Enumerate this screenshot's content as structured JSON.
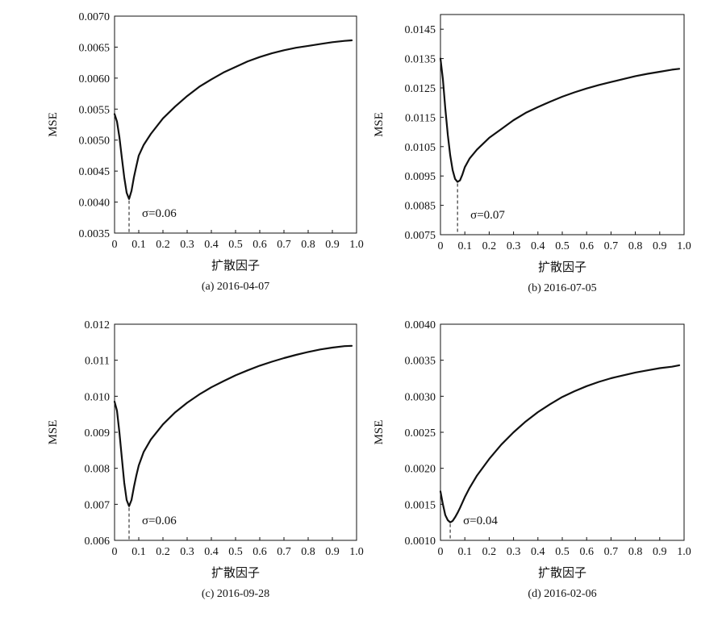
{
  "chart_data": [
    {
      "type": "line",
      "caption": "(a) 2016-04-07",
      "xlabel": "扩散因子",
      "ylabel": "MSE",
      "xlim": [
        0,
        1.0
      ],
      "ylim": [
        0.0035,
        0.007
      ],
      "xticks": [
        0,
        0.1,
        0.2,
        0.3,
        0.4,
        0.5,
        0.6,
        0.7,
        0.8,
        0.9,
        1.0
      ],
      "xtick_labels": [
        "0",
        "0.1",
        "0.2",
        "0.3",
        "0.4",
        "0.5",
        "0.6",
        "0.7",
        "0.8",
        "0.9",
        "1.0"
      ],
      "yticks": [
        0.0035,
        0.004,
        0.0045,
        0.005,
        0.0055,
        0.006,
        0.0065,
        0.007
      ],
      "ytick_labels": [
        "0.0035",
        "0.0040",
        "0.0045",
        "0.0050",
        "0.0055",
        "0.0060",
        "0.0065",
        "0.0070"
      ],
      "min_x": 0.06,
      "annotation": "σ=0.06",
      "series": [
        {
          "x": [
            0,
            0.01,
            0.02,
            0.03,
            0.04,
            0.05,
            0.06,
            0.07,
            0.08,
            0.09,
            0.1,
            0.12,
            0.15,
            0.2,
            0.25,
            0.3,
            0.35,
            0.4,
            0.45,
            0.5,
            0.55,
            0.6,
            0.65,
            0.7,
            0.75,
            0.8,
            0.85,
            0.9,
            0.95,
            0.98
          ],
          "y": [
            0.00542,
            0.0053,
            0.00505,
            0.00472,
            0.0044,
            0.00415,
            0.00405,
            0.00418,
            0.0044,
            0.00458,
            0.00475,
            0.00492,
            0.0051,
            0.00535,
            0.00554,
            0.00571,
            0.00586,
            0.00598,
            0.00609,
            0.00618,
            0.00627,
            0.00634,
            0.0064,
            0.00645,
            0.00649,
            0.00652,
            0.00655,
            0.00658,
            0.0066,
            0.00661
          ]
        }
      ]
    },
    {
      "type": "line",
      "caption": "(b) 2016-07-05",
      "xlabel": "扩散因子",
      "ylabel": "MSE",
      "xlim": [
        0,
        1.0
      ],
      "ylim": [
        0.0075,
        0.015
      ],
      "xticks": [
        0,
        0.1,
        0.2,
        0.3,
        0.4,
        0.5,
        0.6,
        0.7,
        0.8,
        0.9,
        1.0
      ],
      "xtick_labels": [
        "0",
        "0.1",
        "0.2",
        "0.3",
        "0.4",
        "0.5",
        "0.6",
        "0.7",
        "0.8",
        "0.9",
        "1.0"
      ],
      "yticks": [
        0.0075,
        0.0085,
        0.0095,
        0.0105,
        0.0115,
        0.0125,
        0.0135,
        0.0145
      ],
      "ytick_labels": [
        "0.0075",
        "0.0085",
        "0.0095",
        "0.0105",
        "0.0115",
        "0.0125",
        "0.0135",
        "0.0145"
      ],
      "min_x": 0.07,
      "annotation": "σ=0.07",
      "series": [
        {
          "x": [
            0,
            0.01,
            0.02,
            0.03,
            0.04,
            0.05,
            0.06,
            0.07,
            0.08,
            0.09,
            0.1,
            0.12,
            0.15,
            0.2,
            0.25,
            0.3,
            0.35,
            0.4,
            0.45,
            0.5,
            0.55,
            0.6,
            0.65,
            0.7,
            0.75,
            0.8,
            0.85,
            0.9,
            0.95,
            0.98
          ],
          "y": [
            0.0135,
            0.0128,
            0.0118,
            0.0109,
            0.0102,
            0.0097,
            0.0094,
            0.0093,
            0.00935,
            0.00955,
            0.0098,
            0.0101,
            0.0104,
            0.0108,
            0.0111,
            0.0114,
            0.01165,
            0.01185,
            0.01203,
            0.0122,
            0.01235,
            0.01248,
            0.0126,
            0.0127,
            0.0128,
            0.0129,
            0.01298,
            0.01305,
            0.01312,
            0.01315
          ]
        }
      ]
    },
    {
      "type": "line",
      "caption": "(c) 2016-09-28",
      "xlabel": "扩散因子",
      "ylabel": "MSE",
      "xlim": [
        0,
        1.0
      ],
      "ylim": [
        0.006,
        0.012
      ],
      "xticks": [
        0,
        0.1,
        0.2,
        0.3,
        0.4,
        0.5,
        0.6,
        0.7,
        0.8,
        0.9,
        1.0
      ],
      "xtick_labels": [
        "0",
        "0.1",
        "0.2",
        "0.3",
        "0.4",
        "0.5",
        "0.6",
        "0.7",
        "0.8",
        "0.9",
        "1.0"
      ],
      "yticks": [
        0.006,
        0.007,
        0.008,
        0.009,
        0.01,
        0.011,
        0.012
      ],
      "ytick_labels": [
        "0.006",
        "0.007",
        "0.008",
        "0.009",
        "0.010",
        "0.011",
        "0.012"
      ],
      "min_x": 0.06,
      "annotation": "σ=0.06",
      "series": [
        {
          "x": [
            0,
            0.01,
            0.02,
            0.03,
            0.04,
            0.05,
            0.06,
            0.07,
            0.08,
            0.09,
            0.1,
            0.12,
            0.15,
            0.2,
            0.25,
            0.3,
            0.35,
            0.4,
            0.45,
            0.5,
            0.55,
            0.6,
            0.65,
            0.7,
            0.75,
            0.8,
            0.85,
            0.9,
            0.95,
            0.98
          ],
          "y": [
            0.00985,
            0.0096,
            0.009,
            0.0083,
            0.0076,
            0.00712,
            0.00695,
            0.00712,
            0.00748,
            0.0078,
            0.00808,
            0.00845,
            0.0088,
            0.00922,
            0.00955,
            0.00982,
            0.01005,
            0.01025,
            0.01042,
            0.01058,
            0.01072,
            0.01085,
            0.01096,
            0.01106,
            0.01115,
            0.01123,
            0.0113,
            0.01135,
            0.01139,
            0.0114
          ]
        }
      ]
    },
    {
      "type": "line",
      "caption": "(d) 2016-02-06",
      "xlabel": "扩散因子",
      "ylabel": "MSE",
      "xlim": [
        0,
        1.0
      ],
      "ylim": [
        0.001,
        0.004
      ],
      "xticks": [
        0,
        0.1,
        0.2,
        0.3,
        0.4,
        0.5,
        0.6,
        0.7,
        0.8,
        0.9,
        1.0
      ],
      "xtick_labels": [
        "0",
        "0.1",
        "0.2",
        "0.3",
        "0.4",
        "0.5",
        "0.6",
        "0.7",
        "0.8",
        "0.9",
        "1.0"
      ],
      "yticks": [
        0.001,
        0.0015,
        0.002,
        0.0025,
        0.003,
        0.0035,
        0.004
      ],
      "ytick_labels": [
        "0.0010",
        "0.0015",
        "0.0020",
        "0.0025",
        "0.0030",
        "0.0035",
        "0.0040"
      ],
      "min_x": 0.04,
      "annotation": "σ=0.04",
      "series": [
        {
          "x": [
            0,
            0.01,
            0.02,
            0.03,
            0.04,
            0.05,
            0.06,
            0.07,
            0.08,
            0.1,
            0.12,
            0.15,
            0.2,
            0.25,
            0.3,
            0.35,
            0.4,
            0.45,
            0.5,
            0.55,
            0.6,
            0.65,
            0.7,
            0.75,
            0.8,
            0.85,
            0.9,
            0.95,
            0.98
          ],
          "y": [
            0.00168,
            0.0015,
            0.00135,
            0.00128,
            0.00125,
            0.00127,
            0.00132,
            0.00138,
            0.00145,
            0.0016,
            0.00173,
            0.0019,
            0.00213,
            0.00233,
            0.0025,
            0.00265,
            0.00278,
            0.00289,
            0.00299,
            0.00307,
            0.00314,
            0.0032,
            0.00325,
            0.00329,
            0.00333,
            0.00336,
            0.00339,
            0.00341,
            0.00343
          ]
        }
      ]
    }
  ]
}
